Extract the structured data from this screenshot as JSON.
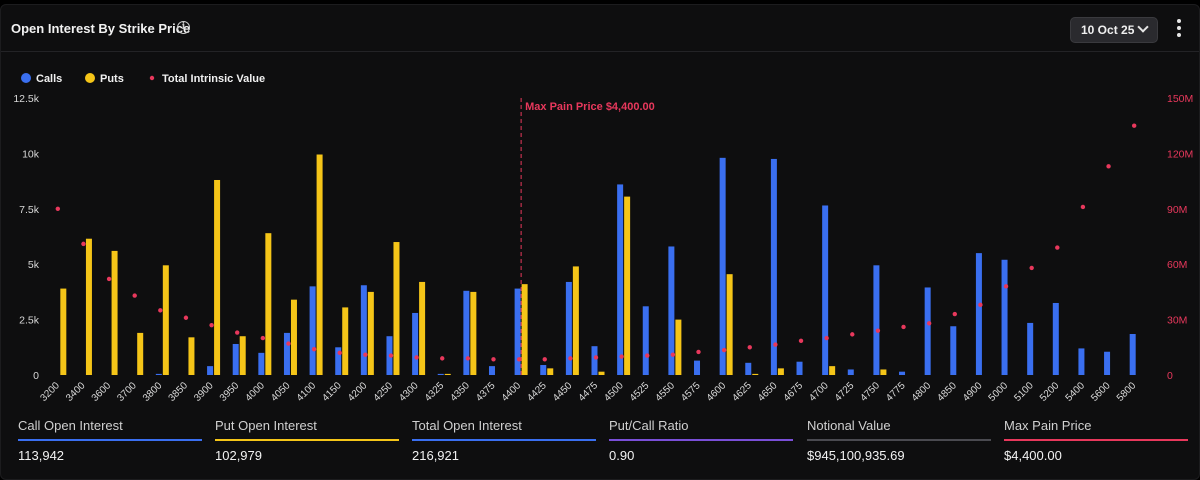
{
  "header": {
    "title": "Open Interest By Strike Price",
    "date": "10 Oct 25"
  },
  "colors": {
    "calls": "#3a6ff0",
    "puts": "#f5c518",
    "intrinsic": "#e8385c",
    "max_pain": "#e8385c",
    "notional": "#4a4a50",
    "ratio": "#7a4fd8"
  },
  "chart_data": {
    "type": "bar",
    "legend": {
      "position": "top-left",
      "items": [
        "Calls",
        "Puts",
        "Total Intrinsic Value"
      ]
    },
    "categories": [
      "3200",
      "3400",
      "3600",
      "3700",
      "3800",
      "3850",
      "3900",
      "3950",
      "4000",
      "4050",
      "4100",
      "4150",
      "4200",
      "4250",
      "4300",
      "4325",
      "4350",
      "4375",
      "4400",
      "4425",
      "4450",
      "4475",
      "4500",
      "4525",
      "4550",
      "4575",
      "4600",
      "4625",
      "4650",
      "4675",
      "4700",
      "4725",
      "4750",
      "4775",
      "4800",
      "4850",
      "4900",
      "5000",
      "5100",
      "5200",
      "5400",
      "5600",
      "5800"
    ],
    "y_left": {
      "ticks": [
        "0",
        "2.5k",
        "5k",
        "7.5k",
        "10k",
        "12.5k"
      ],
      "ylim": [
        0,
        12500
      ]
    },
    "y_right": {
      "ticks": [
        "0",
        "30M",
        "60M",
        "90M",
        "120M",
        "150M"
      ],
      "ylim": [
        0,
        150000000
      ]
    },
    "grid": false,
    "series": [
      {
        "name": "Calls",
        "axis": "left",
        "kind": "bar",
        "values": [
          0,
          0,
          0,
          0,
          50,
          0,
          400,
          1400,
          1000,
          1900,
          4000,
          1250,
          4050,
          1750,
          2800,
          50,
          3800,
          400,
          3900,
          450,
          4200,
          1300,
          8600,
          3100,
          5800,
          650,
          9800,
          550,
          9750,
          600,
          7650,
          250,
          4950,
          150,
          3950,
          2200,
          5500,
          5200,
          2350,
          3250,
          1200,
          1050,
          1850
        ]
      },
      {
        "name": "Puts",
        "axis": "left",
        "kind": "bar",
        "values": [
          3900,
          6150,
          5600,
          1900,
          4950,
          1700,
          8800,
          1750,
          6400,
          3400,
          9950,
          3050,
          3750,
          6000,
          4200,
          50,
          3750,
          0,
          4100,
          300,
          4900,
          150,
          8050,
          0,
          2500,
          0,
          4550,
          50,
          300,
          0,
          400,
          0,
          250,
          0,
          0,
          0,
          0,
          0,
          0,
          0,
          0,
          0,
          0
        ]
      },
      {
        "name": "Total Intrinsic Value",
        "axis": "right",
        "kind": "scatter",
        "values": [
          90000000,
          71000000,
          52000000,
          43000000,
          35000000,
          31000000,
          27000000,
          23000000,
          20000000,
          17000000,
          14000000,
          12000000,
          11000000,
          10500000,
          9500000,
          9000000,
          9000000,
          8500000,
          8500000,
          8500000,
          9000000,
          9500000,
          10000000,
          10500000,
          11000000,
          12500000,
          13500000,
          15000000,
          16500000,
          18500000,
          20000000,
          22000000,
          24000000,
          26000000,
          28000000,
          33000000,
          38000000,
          48000000,
          58000000,
          69000000,
          91000000,
          113000000,
          135000000
        ]
      }
    ],
    "annotation": {
      "label": "Max Pain Price $4,400.00",
      "category": "4400"
    }
  },
  "stats": [
    {
      "label": "Call Open Interest",
      "value": "113,942",
      "color": "#3a6ff0"
    },
    {
      "label": "Put Open Interest",
      "value": "102,979",
      "color": "#f5c518"
    },
    {
      "label": "Total Open Interest",
      "value": "216,921",
      "color": "#3a6ff0"
    },
    {
      "label": "Put/Call Ratio",
      "value": "0.90",
      "color": "#7a4fd8"
    },
    {
      "label": "Notional Value",
      "value": "$945,100,935.69",
      "color": "#4a4a50"
    },
    {
      "label": "Max Pain Price",
      "value": "$4,400.00",
      "color": "#e8385c"
    }
  ]
}
